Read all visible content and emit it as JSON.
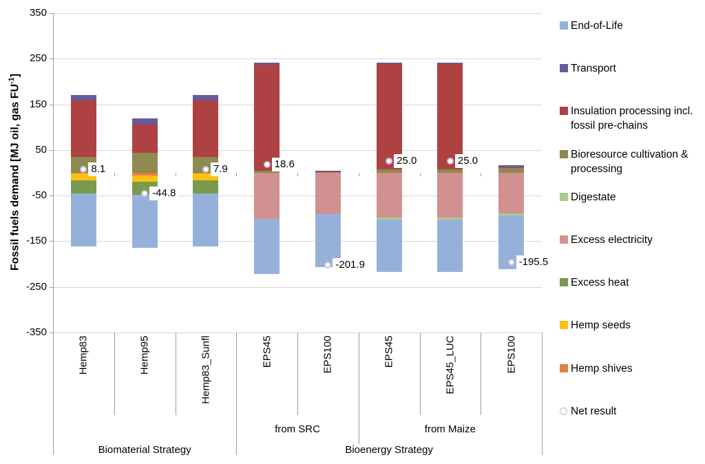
{
  "y_axis": {
    "label_main": "Fossil fuels demand [MJ oil, gas FU",
    "label_sup": "-1",
    "label_end": "]",
    "ticks": [
      350,
      250,
      150,
      50,
      -50,
      -150,
      -250,
      -350
    ],
    "min": -350,
    "max": 350
  },
  "chart_data": {
    "type": "bar",
    "stacked": true,
    "grid": true,
    "categories": [
      "Hemp83",
      "Hemp95",
      "Hemp83_Sunfl",
      "EPS45",
      "EPS100",
      "EPS45",
      "EPS45_LUC",
      "EPS100"
    ],
    "series": [
      {
        "name": "End-of-Life",
        "color": "#95B1D9",
        "values": [
          -116.9,
          -115.8,
          -117.1,
          -121.4,
          -116.9,
          -114.0,
          -114.0,
          -117.9
        ]
      },
      {
        "name": "Transport",
        "color": "#685B9B",
        "values": [
          11,
          14,
          11,
          4,
          2,
          4,
          4,
          4
        ]
      },
      {
        "name": "Insulation processing incl. fossil pre-chains",
        "color": "#AE4142",
        "values": [
          125,
          62,
          124,
          232,
          2,
          230,
          230,
          1
        ]
      },
      {
        "name": "Bioresource cultivation & processing",
        "color": "#8F8A4F",
        "values": [
          34,
          43,
          35,
          5,
          1,
          8,
          8,
          11
        ]
      },
      {
        "name": "Digestate",
        "color": "#ABCB8D",
        "values": [
          0,
          0,
          0,
          0,
          0,
          -5,
          -5,
          -5
        ]
      },
      {
        "name": "Excess electricity",
        "color": "#D29191",
        "values": [
          0,
          0,
          0,
          -101,
          -90,
          -98,
          -98,
          -88.6
        ]
      },
      {
        "name": "Excess heat",
        "color": "#7A9A4D",
        "values": [
          -28,
          -29,
          -28,
          0,
          0,
          0,
          0,
          0
        ]
      },
      {
        "name": "Hemp seeds",
        "color": "#FEC113",
        "values": [
          -15,
          -13,
          -15,
          0,
          0,
          0,
          0,
          0
        ]
      },
      {
        "name": "Hemp shives",
        "color": "#E0813C",
        "values": [
          -2,
          -6,
          -2,
          0,
          0,
          0,
          0,
          0
        ]
      }
    ],
    "stack_order_positive": [
      3,
      2,
      1
    ],
    "stack_order_negative": [
      8,
      7,
      6,
      5,
      4,
      0
    ],
    "net_result": {
      "name": "Net result",
      "values": [
        8.1,
        -44.8,
        7.9,
        18.6,
        -201.9,
        25.0,
        25.0,
        -195.5
      ],
      "labels": [
        "8.1",
        "-44.8",
        "7.9",
        "18.6",
        "-201.9",
        "25.0",
        "25.0",
        "-195.5"
      ]
    },
    "group_tiers": {
      "middle": [
        {
          "label": "from SRC",
          "span": [
            3,
            5
          ]
        },
        {
          "label": "from Maize",
          "span": [
            5,
            8
          ]
        }
      ],
      "bottom": [
        {
          "label": "Biomaterial Strategy",
          "span": [
            0,
            3
          ]
        },
        {
          "label": "Bioenergy Strategy",
          "span": [
            3,
            8
          ]
        }
      ]
    },
    "ylim": [
      -350,
      350
    ]
  },
  "legend": {
    "items": [
      {
        "label": "End-of-Life",
        "color": "#95B1D9",
        "shape": "square"
      },
      {
        "label": "Transport",
        "color": "#685B9B",
        "shape": "square"
      },
      {
        "label": "Insulation processing incl. fossil pre-chains",
        "color": "#AE4142",
        "shape": "square"
      },
      {
        "label": "Bioresource cultivation & processing",
        "color": "#8F8A4F",
        "shape": "square"
      },
      {
        "label": "Digestate",
        "color": "#ABCB8D",
        "shape": "square"
      },
      {
        "label": "Excess electricity",
        "color": "#D29191",
        "shape": "square"
      },
      {
        "label": "Excess heat",
        "color": "#7A9A4D",
        "shape": "square"
      },
      {
        "label": "Hemp seeds",
        "color": "#FEC113",
        "shape": "square"
      },
      {
        "label": "Hemp shives",
        "color": "#E0813C",
        "shape": "square"
      },
      {
        "label": "Net result",
        "color": "#FFFFFF",
        "shape": "circle"
      }
    ]
  },
  "colors": {
    "grid": "#D7D7D7",
    "zero_line": "#B9B9B9",
    "axis": "#9B9B9B",
    "marker_border": "#C4C0DC"
  }
}
